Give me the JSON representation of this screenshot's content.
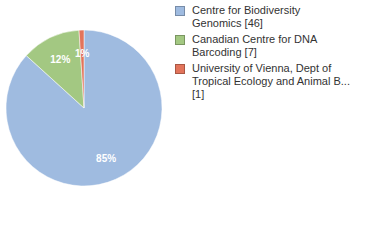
{
  "chart_data": {
    "type": "pie",
    "categories": [
      "Centre for Biodiversity Genomics [46]",
      "Canadian Centre for DNA Barcoding [7]",
      "University of Vienna, Dept of Tropical Ecology and Animal B... [1]"
    ],
    "values": [
      85,
      12,
      1
    ],
    "value_labels": [
      "85%",
      "12%",
      "1%"
    ],
    "colors": [
      "#9fbbe0",
      "#a3c882",
      "#e2745b"
    ],
    "data_labels": true,
    "legend": "right"
  }
}
